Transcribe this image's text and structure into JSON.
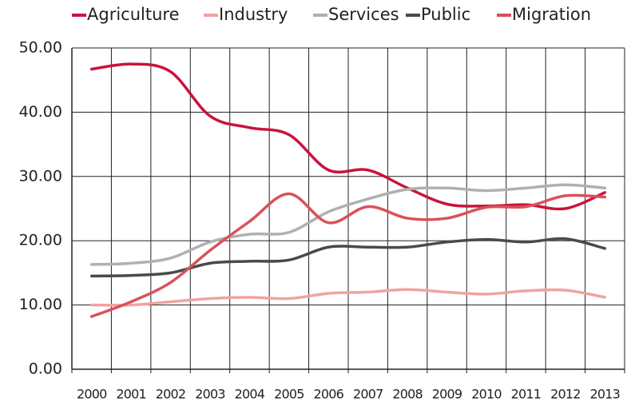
{
  "chart_data": {
    "type": "line",
    "categories": [
      "2000",
      "2001",
      "2002",
      "2003",
      "2004",
      "2005",
      "2006",
      "2007",
      "2008",
      "2009",
      "2010",
      "2011",
      "2012",
      "2013"
    ],
    "series": [
      {
        "name": "Agriculture",
        "color": "#c8143c",
        "values": [
          46.7,
          47.5,
          46.3,
          39.4,
          37.6,
          36.5,
          31,
          31,
          28.2,
          25.7,
          25.4,
          25.6,
          25,
          27.5
        ]
      },
      {
        "name": "Industry",
        "color": "#f0a3a0",
        "values": [
          10,
          10,
          10.5,
          11,
          11.2,
          11,
          11.8,
          12,
          12.4,
          12,
          11.7,
          12.2,
          12.3,
          11.2
        ]
      },
      {
        "name": "Services",
        "color": "#b0b0b0",
        "values": [
          16.3,
          16.5,
          17.3,
          19.8,
          21,
          21.3,
          24.5,
          26.5,
          28,
          28.2,
          27.8,
          28.2,
          28.7,
          28.2
        ]
      },
      {
        "name": "Public",
        "color": "#4a4a4a",
        "values": [
          14.5,
          14.6,
          15,
          16.5,
          16.8,
          17,
          19,
          19,
          19,
          19.8,
          20.2,
          19.8,
          20.3,
          18.8
        ]
      },
      {
        "name": "Migration",
        "color": "#d9515b",
        "values": [
          8.2,
          10.5,
          13.5,
          18.5,
          23,
          27.3,
          22.8,
          25.3,
          23.5,
          23.5,
          25.2,
          25.3,
          27,
          26.8
        ]
      }
    ],
    "ylim": [
      0,
      50
    ],
    "yticks": [
      {
        "value": 0,
        "label": "0.00"
      },
      {
        "value": 10,
        "label": "10.00"
      },
      {
        "value": 20,
        "label": "20.00"
      },
      {
        "value": 30,
        "label": "30.00"
      },
      {
        "value": 40,
        "label": "40.00"
      },
      {
        "value": 50,
        "label": "50.00"
      }
    ],
    "grid": true,
    "legend": "top"
  }
}
